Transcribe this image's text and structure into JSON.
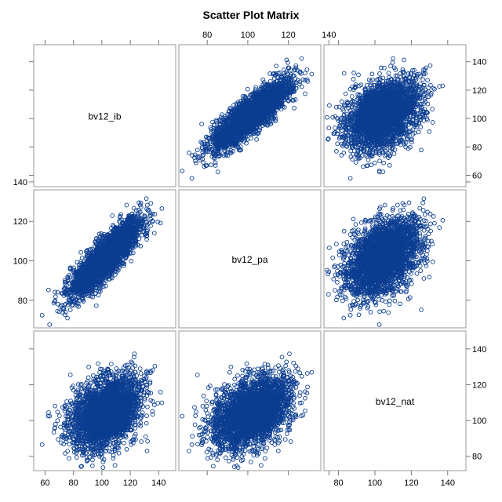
{
  "title": "Scatter Plot Matrix",
  "chart_data": {
    "type": "scatter",
    "subtype": "scatter-matrix",
    "title": "Scatter Plot Matrix",
    "variables": [
      "bv12_ib",
      "bv12_pa",
      "bv12_nat"
    ],
    "axes": {
      "bv12_ib": {
        "range": [
          52,
          152
        ],
        "ticks": [
          60,
          80,
          100,
          120,
          140
        ]
      },
      "bv12_pa": {
        "range": [
          66,
          136
        ],
        "ticks": [
          80,
          100,
          120,
          140
        ]
      },
      "bv12_nat": {
        "range": [
          72,
          150
        ],
        "ticks": [
          80,
          100,
          120,
          140
        ]
      }
    },
    "tick_labels": {
      "top_col1": [
        "80",
        "100",
        "120",
        "140"
      ],
      "bottom_col0": [
        "60",
        "80",
        "100",
        "120",
        "140"
      ],
      "bottom_col2": [
        "80",
        "100",
        "120",
        "140"
      ],
      "right_row0": [
        "60",
        "80",
        "100",
        "120",
        "140"
      ],
      "right_row2": [
        "80",
        "100",
        "120",
        "140"
      ],
      "left_row1": [
        "80",
        "100",
        "120",
        "140"
      ]
    },
    "distributions": {
      "bv12_ib": {
        "mean": 103,
        "sd": 12
      },
      "bv12_pa": {
        "mean": 102,
        "sd": 9.5
      },
      "bv12_nat": {
        "mean": 104,
        "sd": 10
      }
    },
    "correlations": {
      "bv12_ib~bv12_pa": 0.85,
      "bv12_ib~bv12_nat": 0.35,
      "bv12_pa~bv12_nat": 0.4
    },
    "n_points_approx": 3000,
    "marker": "open-circle",
    "marker_color": "#0b3d91",
    "legend": "none",
    "grid": false
  }
}
